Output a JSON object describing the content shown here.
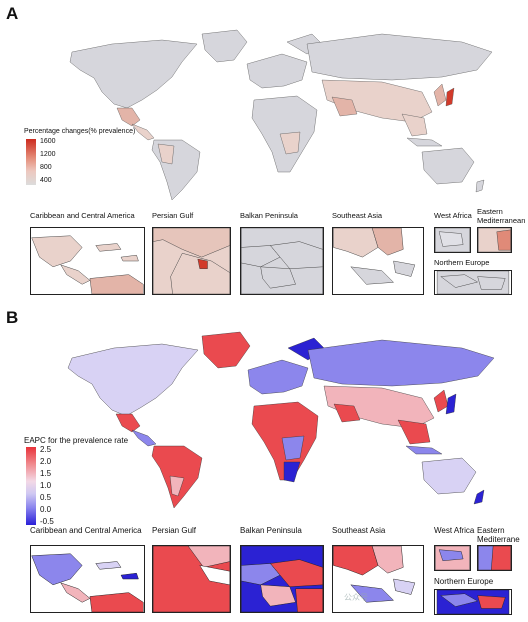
{
  "panels": [
    {
      "letter": "A",
      "legend": {
        "title": "Percentage changes(% prevalence)",
        "ticks": [
          "1600",
          "1200",
          "800",
          "400"
        ],
        "gradient": [
          "#cc2a1e",
          "#e48a76",
          "#edc8bf",
          "#dcdcdc"
        ]
      },
      "insets": [
        {
          "title": "Caribbean and Central America"
        },
        {
          "title": "Persian Gulf"
        },
        {
          "title": "Balkan Peninsula"
        },
        {
          "title": "Southeast Asia"
        },
        {
          "title": "West Africa"
        },
        {
          "title": "Eastern Mediterranean"
        },
        {
          "title": "Northern Europe"
        }
      ],
      "colors": {
        "base": "#d6d6dc",
        "light": "#e9d2cb",
        "mid": "#e3b4a8",
        "strong": "#d23a2a"
      }
    },
    {
      "letter": "B",
      "legend": {
        "title": "EAPC for the prevalence rate",
        "ticks": [
          "2.5",
          "2.0",
          "1.5",
          "1.0",
          "0.5",
          "0.0",
          "-0.5"
        ],
        "gradient": [
          "#e8323a",
          "#f08a8e",
          "#f3d9e6",
          "#cfc8f2",
          "#8a84ee",
          "#2a1fd8"
        ]
      },
      "insets": [
        {
          "title": "Caribbean and Central America"
        },
        {
          "title": "Persian Gulf"
        },
        {
          "title": "Balkan Peninsula"
        },
        {
          "title": "Southeast Asia"
        },
        {
          "title": "West Africa"
        },
        {
          "title": "Eastern"
        },
        {
          "title": "Northern Europe"
        }
      ],
      "inset_extra": "Mediterrane",
      "colors": {
        "red": "#ea4a4f",
        "pink": "#f2b4bb",
        "lav": "#d8d2f4",
        "blue": "#8c86ec",
        "deep": "#2b22d3"
      }
    }
  ],
  "watermark": "公众号"
}
